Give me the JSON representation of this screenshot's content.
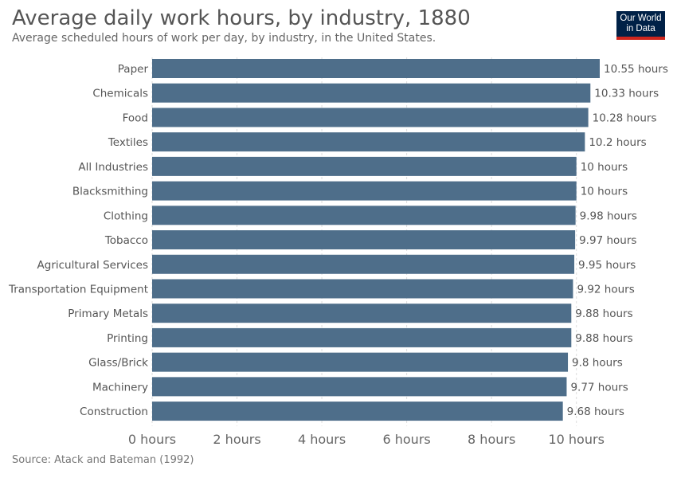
{
  "header": {
    "title": "Average daily work hours, by industry, 1880",
    "subtitle": "Average scheduled hours of work per day, by industry, in the United States.",
    "logo_line1": "Our World",
    "logo_line2": "in Data"
  },
  "footer": {
    "source": "Source: Atack and Bateman (1992)"
  },
  "colors": {
    "bar": "#4e6e8a",
    "label": "#555555",
    "grid": "#dddddd",
    "logo_bg": "#002147",
    "logo_accent": "#ce261e"
  },
  "chart_data": {
    "type": "bar",
    "orientation": "horizontal",
    "categories": [
      "Paper",
      "Chemicals",
      "Food",
      "Textiles",
      "All Industries",
      "Blacksmithing",
      "Clothing",
      "Tobacco",
      "Agricultural Services",
      "Transportation Equipment",
      "Primary Metals",
      "Printing",
      "Glass/Brick",
      "Machinery",
      "Construction"
    ],
    "values": [
      10.55,
      10.33,
      10.28,
      10.2,
      10,
      10,
      9.98,
      9.97,
      9.95,
      9.92,
      9.88,
      9.88,
      9.8,
      9.77,
      9.68
    ],
    "value_labels": [
      "10.55 hours",
      "10.33 hours",
      "10.28 hours",
      "10.2 hours",
      "10 hours",
      "10 hours",
      "9.98 hours",
      "9.97 hours",
      "9.95 hours",
      "9.92 hours",
      "9.88 hours",
      "9.88 hours",
      "9.8 hours",
      "9.77 hours",
      "9.68 hours"
    ],
    "xticks": [
      0,
      2,
      4,
      6,
      8,
      10
    ],
    "xtick_labels": [
      "0 hours",
      "2 hours",
      "4 hours",
      "6 hours",
      "8 hours",
      "10 hours"
    ],
    "xlim": [
      0,
      10.55
    ],
    "grid": true
  }
}
